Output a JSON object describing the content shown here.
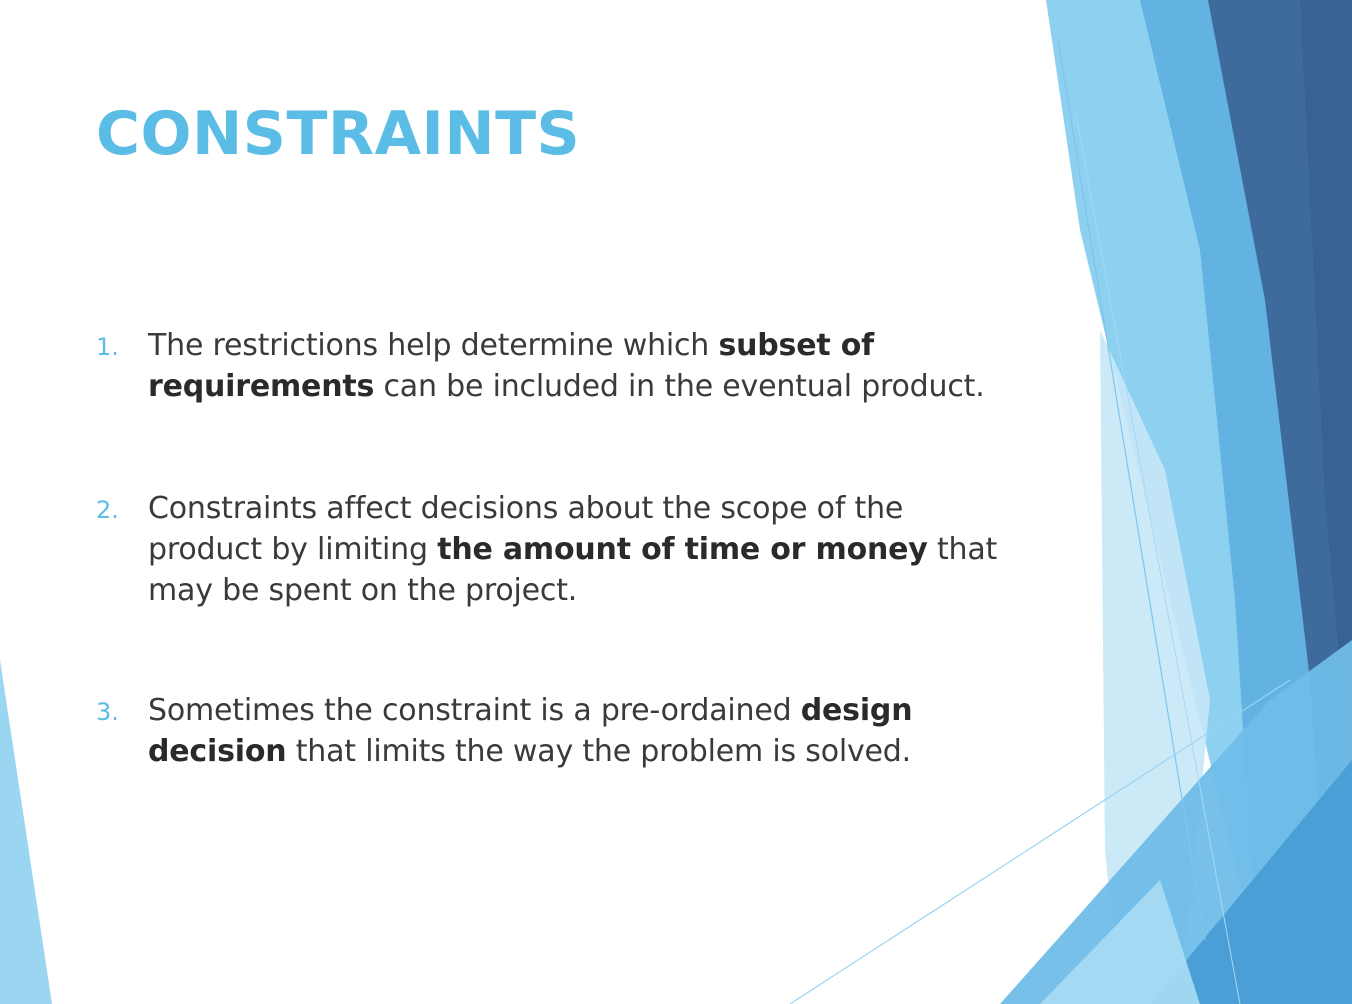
{
  "slide": {
    "title": "CONSTRAINTS",
    "points": [
      {
        "number": "1.",
        "parts": [
          {
            "text": "The restrictions help determine which "
          },
          {
            "text": "subset of requirements"
          },
          {
            "text": " can be included in the eventual product."
          }
        ]
      },
      {
        "number": "2.",
        "parts": [
          {
            "text": "Constraints affect decisions about the scope of the product by limiting "
          },
          {
            "text": "the amount of time or money"
          },
          {
            "text": " that may be spent on the project."
          }
        ]
      },
      {
        "number": "3.",
        "parts": [
          {
            "text": "Sometimes the constraint is a pre-ordained "
          },
          {
            "text": "design decision"
          },
          {
            "text": " that limits the way the problem is solved."
          }
        ]
      }
    ]
  },
  "colors": {
    "title": "#5bbde6",
    "numbering": "#5bbde6",
    "body_text": "#3a3a3a",
    "light_blue": "#8dd0f0",
    "mid_blue": "#4a9fd6",
    "dark_blue": "#3d6a9a"
  }
}
